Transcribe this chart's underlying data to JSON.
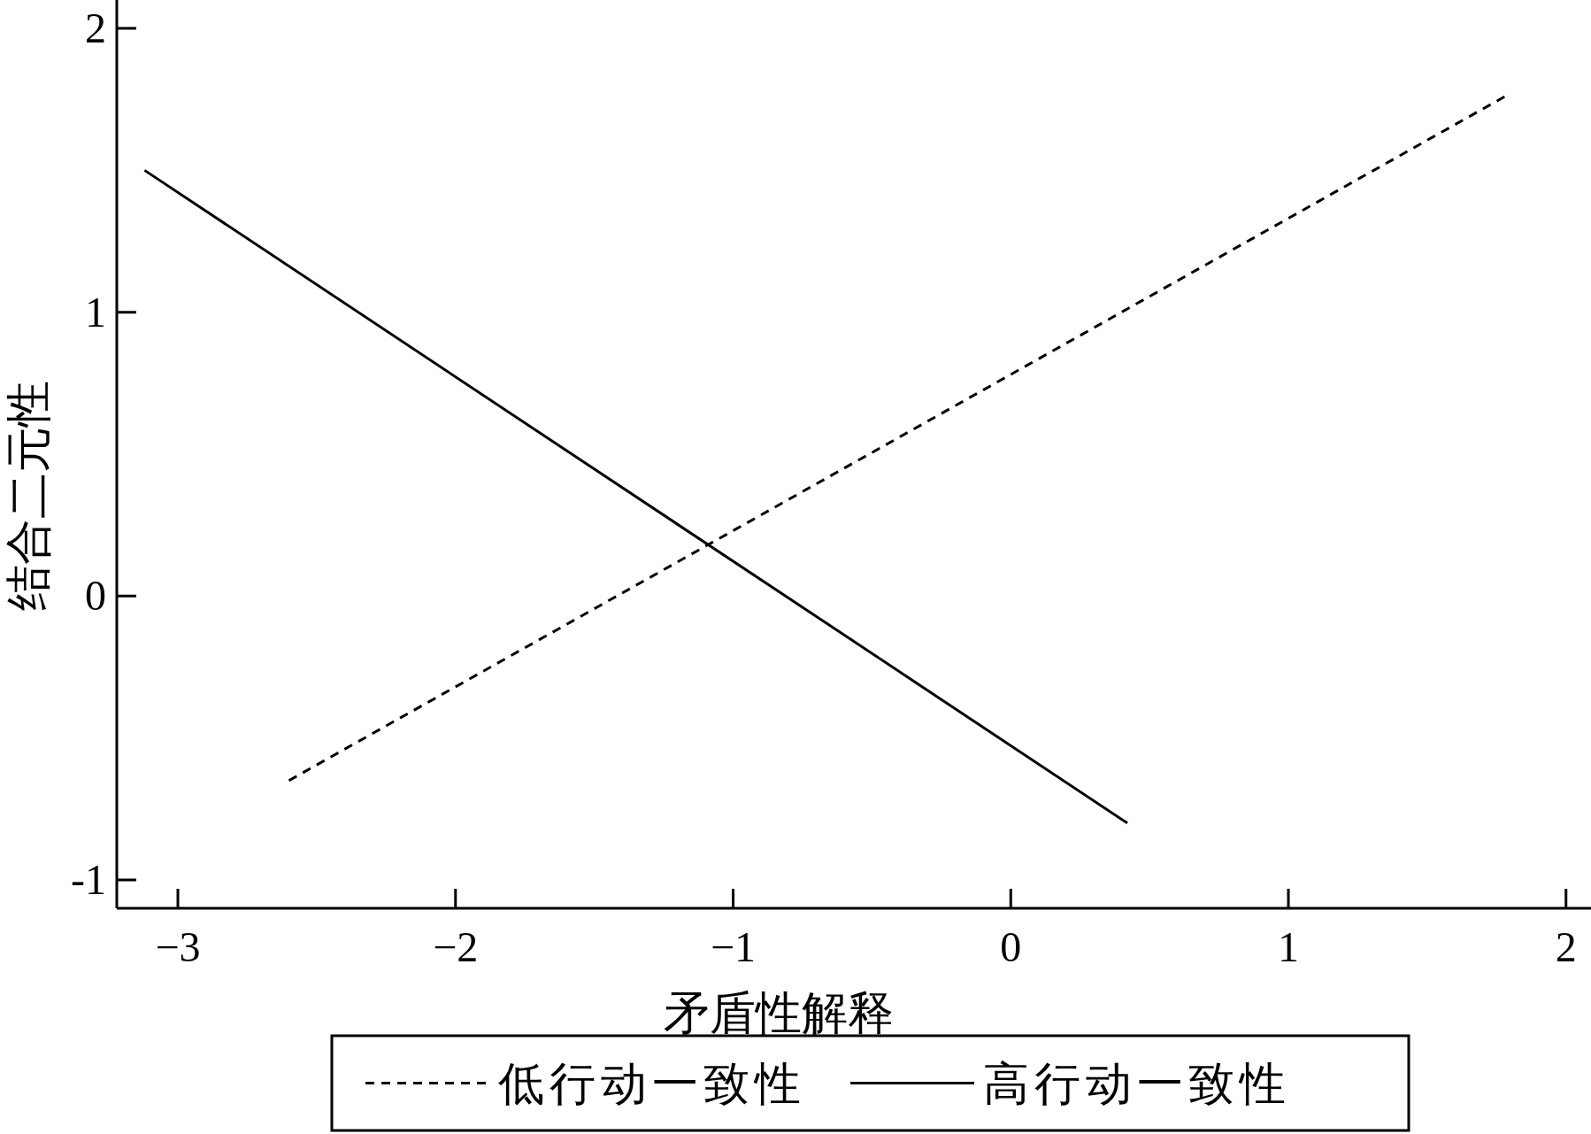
{
  "chart_data": {
    "type": "line",
    "xlabel": "矛盾性解释",
    "ylabel": "结合二元性",
    "xlim": [
      -3.22,
      2.09
    ],
    "ylim": [
      -1.1,
      2.1
    ],
    "xticks": [
      {
        "value": -3,
        "label": "−3"
      },
      {
        "value": -2,
        "label": "−2"
      },
      {
        "value": -1,
        "label": "−1"
      },
      0,
      1,
      2
    ],
    "yticks": [
      {
        "value": -1,
        "label": "-1"
      },
      0,
      1,
      2
    ],
    "grid": false,
    "legend": "bottom",
    "marker": "none",
    "series": [
      {
        "name": "低行动一致性",
        "color": "#000000",
        "line_style": "dashed",
        "x": [
          -2.6,
          1.78
        ],
        "values": [
          -0.65,
          1.76
        ]
      },
      {
        "name": "高行动一致性",
        "color": "#000000",
        "line_style": "solid",
        "x": [
          -3.12,
          0.42
        ],
        "values": [
          1.5,
          -0.8
        ]
      }
    ]
  }
}
